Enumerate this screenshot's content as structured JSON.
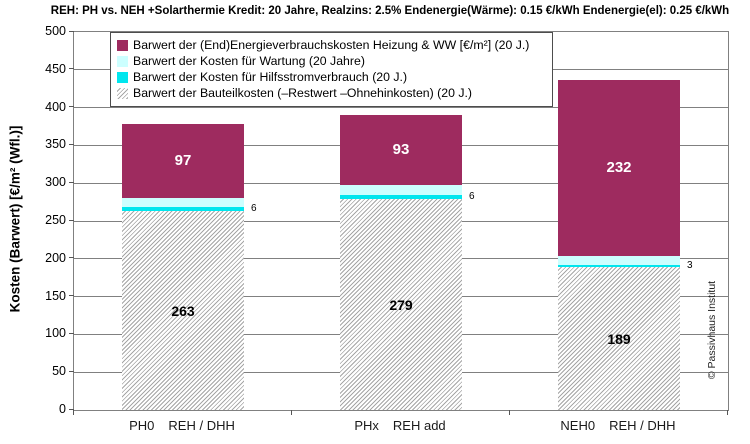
{
  "chart_data": {
    "type": "bar",
    "stacked": true,
    "title": "REH: PH vs. NEH +Solarthermie Kredit: 20 Jahre,  Realzins: 2.5%  Endenergie(Wärme): 0.15 €/kWh  Endenergie(el): 0.25 €/kWh",
    "ylabel": "Kosten (Barwert)  [€/m² (Wfl.)]",
    "ymin": 0,
    "ymax": 500,
    "ytick_step": 50,
    "grid": "horizontal",
    "legend_position": "top-left-inside",
    "categories": [
      {
        "code": "PH0",
        "variant": "REH / DHH"
      },
      {
        "code": "PHx",
        "variant": "REH add"
      },
      {
        "code": "NEH0",
        "variant": "REH / DHH"
      }
    ],
    "series": [
      {
        "key": "bauteil",
        "name": "Barwert der Bauteilkosten (–Restwert –Ohnehinkosten)  (20 J.)",
        "style": "hatched",
        "color": "#a6a6a6",
        "value_label": "inside-black",
        "values": [
          263,
          279,
          189
        ]
      },
      {
        "key": "hilfsstrom",
        "name": "Barwert der Kosten für  Hilfsstromverbrauch (20 J.)",
        "style": "cyan",
        "color": "#00e6ee",
        "value_label": "right",
        "values": [
          6,
          6,
          3
        ]
      },
      {
        "key": "wartung",
        "name": "Barwert der Kosten für  Wartung (20 Jahre)",
        "style": "pale",
        "color": "#ccffff",
        "value_label": "above",
        "values": [
          12,
          12,
          12
        ]
      },
      {
        "key": "energie",
        "name": "Barwert der (End)Energieverbrauchskosten Heizung & WW   [€/m²]  (20 J.)",
        "style": "magenta",
        "color": "#9e2b5f",
        "value_label": "inside-white",
        "values": [
          97,
          93,
          232
        ]
      }
    ],
    "legend_order": [
      "energie",
      "wartung",
      "hilfsstrom",
      "bauteil"
    ],
    "totals": [
      378,
      390,
      436
    ],
    "copyright": "© Passivhaus Institut"
  }
}
